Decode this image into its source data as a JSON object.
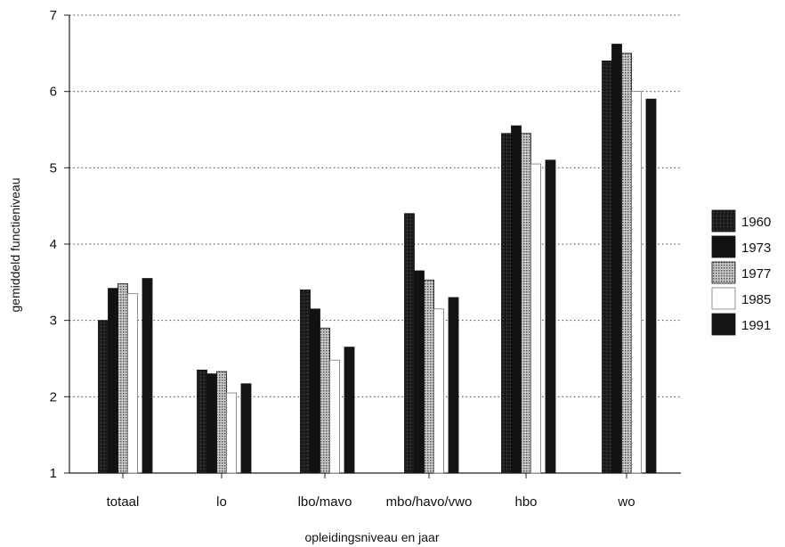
{
  "chart_data": {
    "type": "bar",
    "title": "",
    "xlabel": "opleidingsniveau en jaar",
    "ylabel": "gemiddeld functieniveau",
    "ylim": [
      1,
      7
    ],
    "yticks": [
      "1",
      "2",
      "3",
      "4",
      "5",
      "6",
      "7"
    ],
    "grid": "horizontal dotted",
    "legend_position": "right",
    "categories": [
      "totaal",
      "lo",
      "lbo/mavo",
      "mbo/havo/vwo",
      "hbo",
      "wo"
    ],
    "series": [
      {
        "name": "1960",
        "color": "#222222",
        "pattern": "speckled-dark",
        "values": [
          3.0,
          2.35,
          3.4,
          4.4,
          5.45,
          6.4
        ]
      },
      {
        "name": "1973",
        "color": "#111111",
        "pattern": "solid-dark",
        "values": [
          3.42,
          2.3,
          3.15,
          3.65,
          5.55,
          6.62
        ]
      },
      {
        "name": "1977",
        "color": "#9a9a9a",
        "pattern": "dotted-grey",
        "values": [
          3.48,
          2.33,
          2.9,
          3.53,
          5.45,
          6.5
        ]
      },
      {
        "name": "1985",
        "color": "#ffffff",
        "pattern": "white",
        "values": [
          3.35,
          2.05,
          2.48,
          3.15,
          5.05,
          6.0
        ]
      },
      {
        "name": "1991",
        "color": "#151515",
        "pattern": "solid-dark",
        "values": [
          3.55,
          2.17,
          2.65,
          3.3,
          5.1,
          5.9
        ]
      }
    ]
  }
}
